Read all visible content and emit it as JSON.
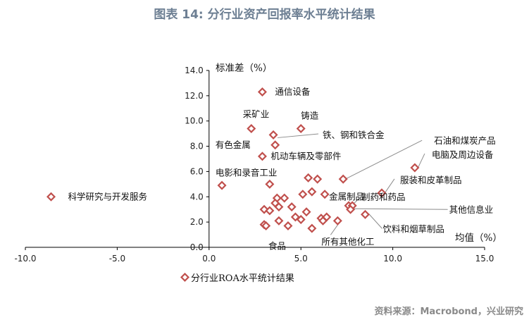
{
  "title": "图表 14: 分行业资产回报率水平统计结果",
  "source": "资料来源：Macrobond，兴业研究",
  "chart_data": {
    "type": "scatter",
    "ylabel": "标准差（%）",
    "xlabel": "均值（%）",
    "xlim": [
      -10,
      15
    ],
    "ylim": [
      0,
      14
    ],
    "xticks": [
      "-10.0",
      "-5.0",
      "0.0",
      "5.0",
      "10.0",
      "15.0"
    ],
    "yticks": [
      "0.0",
      "2.0",
      "4.0",
      "6.0",
      "8.0",
      "10.0",
      "12.0",
      "14.0"
    ],
    "marker_color": "#c0504d",
    "legend": {
      "label": "分行业ROA水平统计结果",
      "position": "bottom-left"
    },
    "series": [
      {
        "name": "分行业ROA水平统计结果",
        "points": [
          {
            "x": -8.6,
            "y": 4.0,
            "label": "科学研究与开发服务"
          },
          {
            "x": 0.7,
            "y": 4.9,
            "label": ""
          },
          {
            "x": 2.9,
            "y": 12.3,
            "label": "通信设备"
          },
          {
            "x": 2.3,
            "y": 9.4,
            "label": "采矿业"
          },
          {
            "x": 3.5,
            "y": 8.9,
            "label": ""
          },
          {
            "x": 5.0,
            "y": 9.4,
            "label": "铸造"
          },
          {
            "x": 3.6,
            "y": 8.1,
            "label": "有色金属"
          },
          {
            "x": 2.9,
            "y": 7.2,
            "label": "机动车辆及零部件"
          },
          {
            "x": 3.3,
            "y": 5.0,
            "label": "电影和录音工业"
          },
          {
            "x": 5.4,
            "y": 5.5,
            "label": ""
          },
          {
            "x": 5.9,
            "y": 5.4,
            "label": ""
          },
          {
            "x": 7.3,
            "y": 5.4,
            "label": "石油和煤炭产品"
          },
          {
            "x": 11.2,
            "y": 6.3,
            "label": "电脑及周边设备"
          },
          {
            "x": 9.4,
            "y": 4.3,
            "label": "服装和皮革制品"
          },
          {
            "x": 3.7,
            "y": 3.9,
            "label": ""
          },
          {
            "x": 4.1,
            "y": 3.9,
            "label": ""
          },
          {
            "x": 5.6,
            "y": 4.4,
            "label": ""
          },
          {
            "x": 5.1,
            "y": 4.2,
            "label": ""
          },
          {
            "x": 6.3,
            "y": 4.2,
            "label": "金属制品"
          },
          {
            "x": 3.6,
            "y": 3.5,
            "label": ""
          },
          {
            "x": 3.8,
            "y": 3.2,
            "label": ""
          },
          {
            "x": 4.5,
            "y": 3.2,
            "label": ""
          },
          {
            "x": 3.0,
            "y": 3.0,
            "label": ""
          },
          {
            "x": 3.3,
            "y": 2.9,
            "label": ""
          },
          {
            "x": 5.3,
            "y": 2.8,
            "label": ""
          },
          {
            "x": 7.6,
            "y": 3.3,
            "label": "制药和药品"
          },
          {
            "x": 7.8,
            "y": 3.3,
            "label": ""
          },
          {
            "x": 7.7,
            "y": 3.0,
            "label": "其他信息业"
          },
          {
            "x": 8.5,
            "y": 2.6,
            "label": "饮料和烟草制品"
          },
          {
            "x": 4.7,
            "y": 2.4,
            "label": ""
          },
          {
            "x": 5.0,
            "y": 2.2,
            "label": ""
          },
          {
            "x": 6.1,
            "y": 2.3,
            "label": ""
          },
          {
            "x": 6.4,
            "y": 2.4,
            "label": ""
          },
          {
            "x": 3.8,
            "y": 2.1,
            "label": ""
          },
          {
            "x": 6.2,
            "y": 2.1,
            "label": ""
          },
          {
            "x": 3.0,
            "y": 1.8,
            "label": ""
          },
          {
            "x": 3.1,
            "y": 1.7,
            "label": ""
          },
          {
            "x": 4.3,
            "y": 1.7,
            "label": "食品"
          },
          {
            "x": 7.0,
            "y": 2.1,
            "label": "所有其他化工"
          },
          {
            "x": 5.6,
            "y": 1.5,
            "label": ""
          }
        ]
      }
    ]
  }
}
